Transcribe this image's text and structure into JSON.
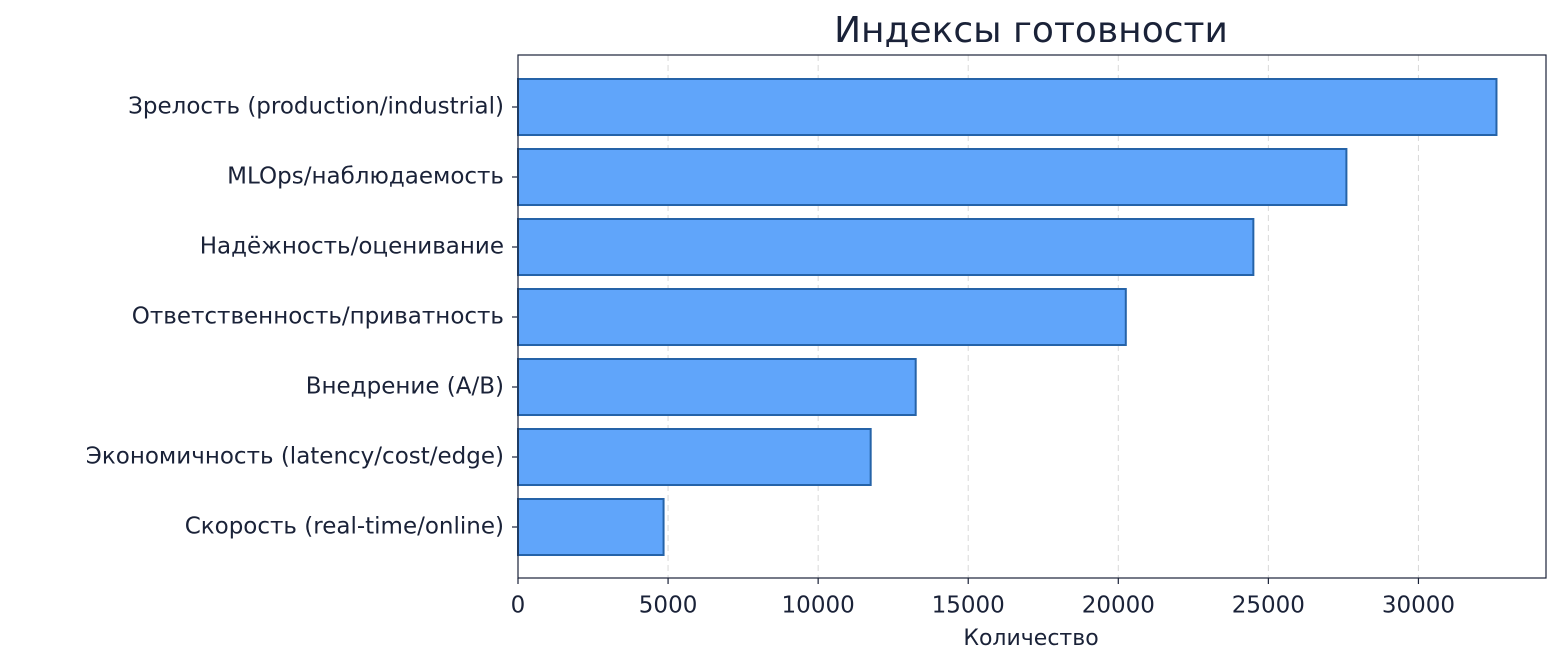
{
  "chart_data": {
    "type": "barh",
    "title": "Индексы готовности",
    "xlabel": "Количество",
    "categories": [
      "Зрелость (production/industrial)",
      "MLOps/наблюдаемость",
      "Надёжность/оценивание",
      "Ответственность/приватность",
      "Внедрение (A/B)",
      "Экономичность (latency/cost/edge)",
      "Скорость (real-time/online)"
    ],
    "values": [
      32600,
      27600,
      24500,
      20250,
      13250,
      11750,
      4850
    ],
    "color": "#60a5fa",
    "edgecolor": "#2563a8",
    "xlim": [
      0,
      34250
    ],
    "xticks": [
      0,
      5000,
      10000,
      15000,
      20000,
      25000,
      30000
    ],
    "grid": true
  }
}
